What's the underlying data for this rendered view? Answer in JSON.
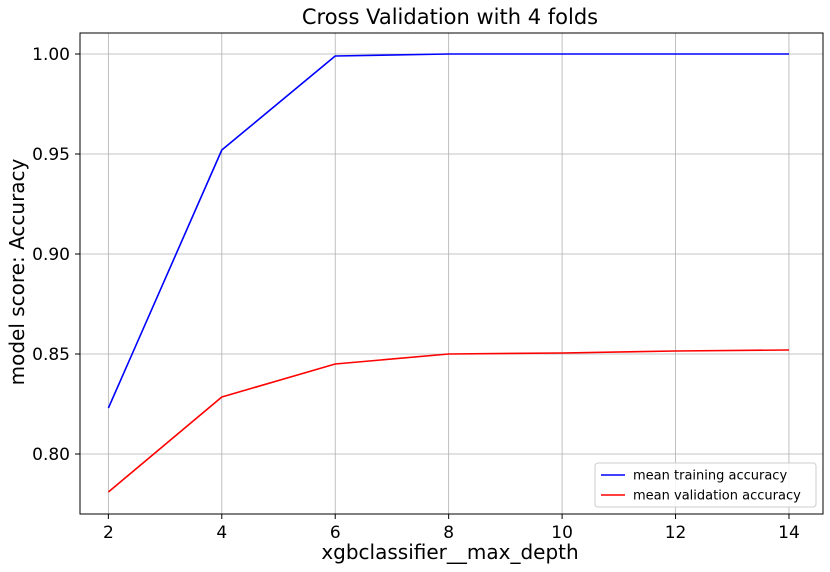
{
  "chart_data": {
    "type": "line",
    "title": "Cross Validation with 4 folds",
    "xlabel": "xgbclassifier__max_depth",
    "ylabel": "model score: Accuracy",
    "xlim": [
      1.5,
      14.6
    ],
    "ylim": [
      0.77,
      1.0105
    ],
    "xticks": [
      2,
      4,
      6,
      8,
      10,
      12,
      14
    ],
    "xtick_labels": [
      "2",
      "4",
      "6",
      "8",
      "10",
      "12",
      "14"
    ],
    "yticks": [
      0.8,
      0.85,
      0.9,
      0.95,
      1.0
    ],
    "ytick_labels": [
      "0.80",
      "0.85",
      "0.90",
      "0.95",
      "1.00"
    ],
    "grid": true,
    "legend_position": "lower-right",
    "x": [
      2,
      4,
      6,
      8,
      10,
      12,
      14
    ],
    "series": [
      {
        "name": "mean training accuracy",
        "color": "#0000ff",
        "values": [
          0.823,
          0.952,
          0.999,
          1.0,
          1.0,
          1.0,
          1.0
        ]
      },
      {
        "name": "mean validation accuracy",
        "color": "#ff0000",
        "values": [
          0.781,
          0.8285,
          0.845,
          0.85,
          0.8505,
          0.8515,
          0.852
        ]
      }
    ]
  }
}
